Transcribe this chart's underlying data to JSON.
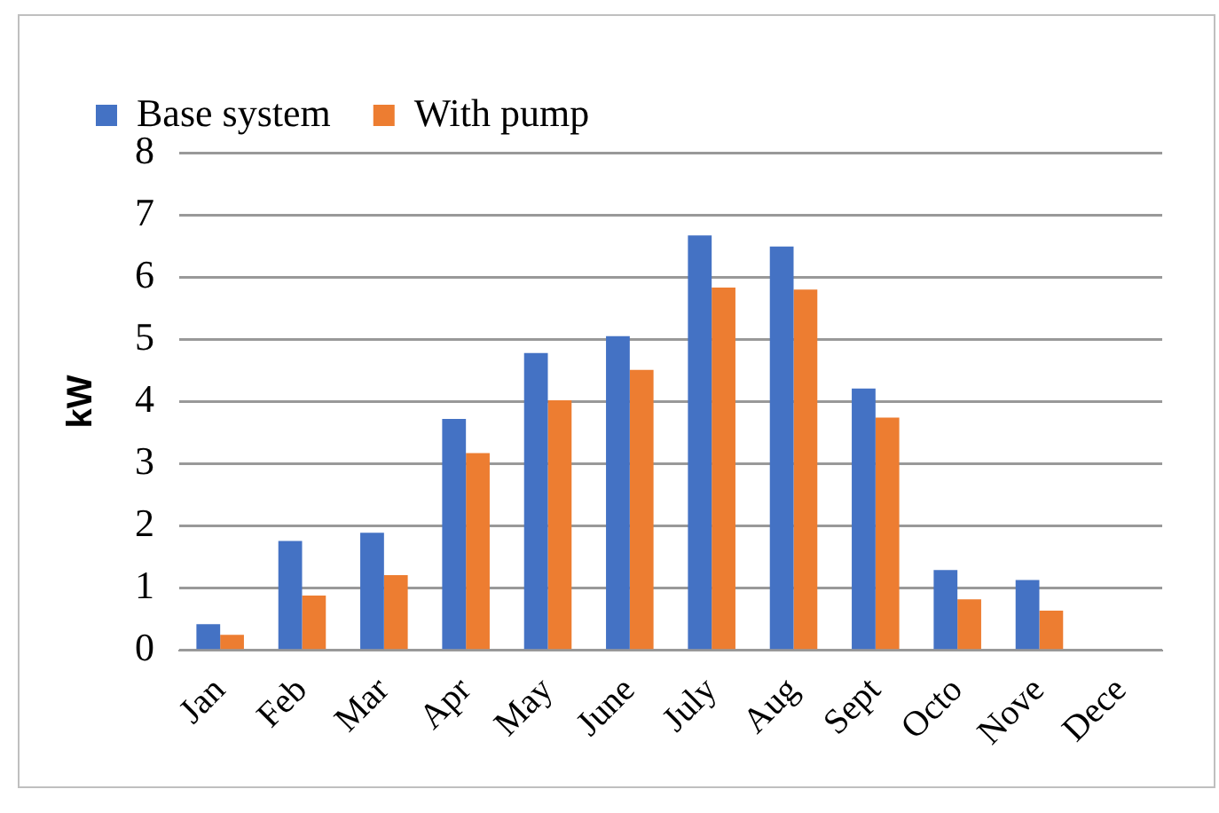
{
  "chart_data": {
    "type": "bar",
    "ylabel": "kW",
    "categories": [
      "Jan",
      "Feb",
      "Mar",
      "Apr",
      "May",
      "June",
      "July",
      "Aug",
      "Sept",
      "Octo",
      "Nove",
      "Dece"
    ],
    "series": [
      {
        "name": "Base system",
        "color": "#4472c4",
        "values": [
          0.42,
          1.76,
          1.89,
          3.72,
          4.78,
          5.05,
          6.67,
          6.49,
          4.21,
          1.29,
          1.13,
          0
        ]
      },
      {
        "name": "With pump",
        "color": "#ed7d31",
        "values": [
          0.25,
          0.88,
          1.21,
          3.17,
          4.02,
          4.51,
          5.83,
          5.8,
          3.74,
          0.82,
          0.64,
          0
        ]
      }
    ],
    "ylim": [
      0,
      8
    ],
    "yticks": [
      0,
      1,
      2,
      3,
      4,
      5,
      6,
      7,
      8
    ],
    "grid": "y",
    "legend": "top left"
  }
}
